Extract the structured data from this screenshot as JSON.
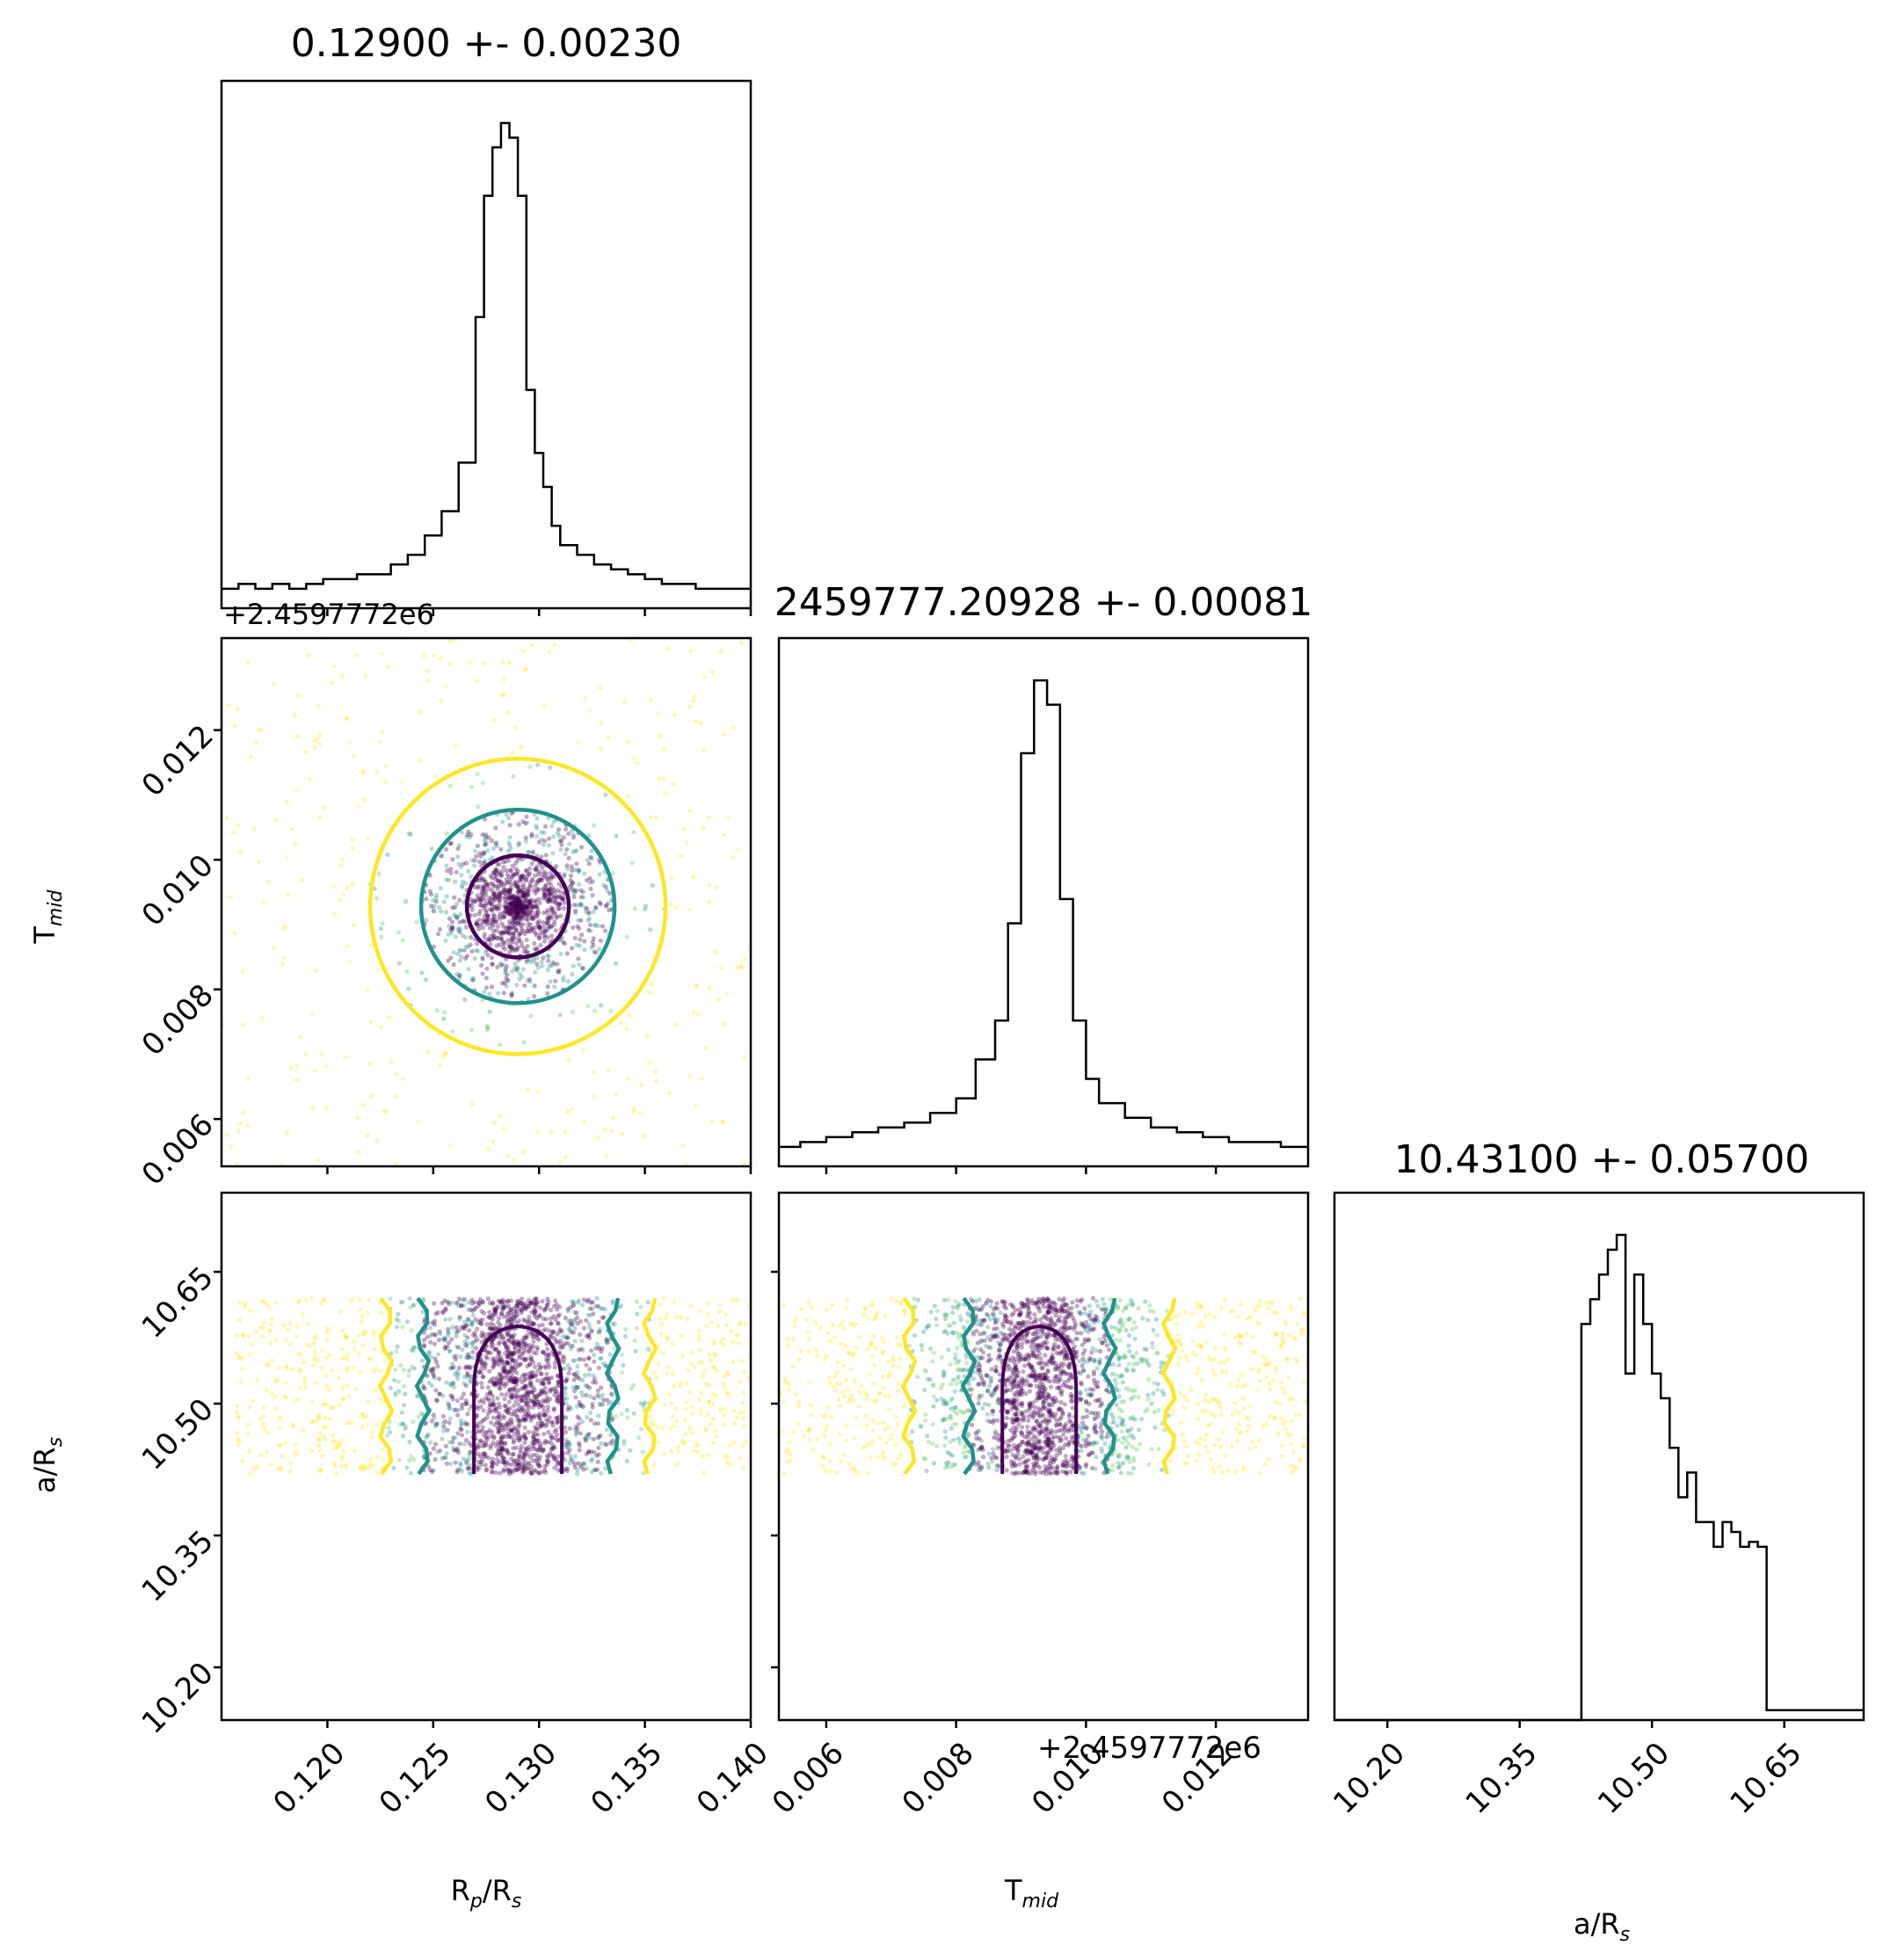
{
  "figure": {
    "offset_text_x": "+2.4597772e6",
    "offset_text_y": "+2.4597772e6",
    "colors": {
      "c1": "#440154",
      "c2": "#21918c",
      "c3": "#fde725",
      "frame": "#000000"
    }
  },
  "chart_data": [
    {
      "type": "histogram",
      "panel": "Rp/Rs marginal",
      "title": "0.12900 +- 0.00230",
      "xlim": [
        0.115,
        0.14
      ],
      "bins": [
        0.115,
        0.1158,
        0.1166,
        0.1174,
        0.1182,
        0.119,
        0.1198,
        0.1206,
        0.1214,
        0.1222,
        0.123,
        0.1238,
        0.1246,
        0.1254,
        0.1262,
        0.127,
        0.1274,
        0.1278,
        0.1282,
        0.1286,
        0.129,
        0.1294,
        0.1298,
        0.1302,
        0.1306,
        0.131,
        0.1318,
        0.1326,
        0.1334,
        0.1342,
        0.135,
        0.1358,
        0.1366,
        0.1374,
        0.1382,
        0.139,
        0.14
      ],
      "counts": [
        4,
        5,
        4,
        5,
        4,
        5,
        6,
        6,
        7,
        7,
        9,
        11,
        15,
        20,
        30,
        60,
        85,
        95,
        100,
        97,
        85,
        45,
        32,
        25,
        17,
        13,
        11,
        9,
        8,
        7,
        6,
        5,
        5,
        4,
        4,
        4
      ]
    },
    {
      "type": "scatter+contour",
      "panel": "Tmid vs Rp/Rs",
      "xlim": [
        0.115,
        0.14
      ],
      "ylim": [
        0.00527,
        0.01342
      ],
      "yticks": [
        "0.006",
        "0.008",
        "0.010",
        "0.012"
      ],
      "ylabel": "T",
      "ylabel_sub": "mid",
      "center": [
        0.129,
        0.00928
      ],
      "contours_sigma": [
        1,
        2,
        3
      ]
    },
    {
      "type": "histogram",
      "panel": "Tmid marginal",
      "title": "2459777.20928 +- 0.00081",
      "xlim": [
        0.00527,
        0.01342
      ],
      "bins": [
        0.00527,
        0.0056,
        0.006,
        0.0064,
        0.0068,
        0.0072,
        0.0076,
        0.008,
        0.0083,
        0.0086,
        0.0088,
        0.009,
        0.0092,
        0.0094,
        0.0096,
        0.0098,
        0.01,
        0.0102,
        0.0106,
        0.011,
        0.0114,
        0.0118,
        0.0122,
        0.0126,
        0.013,
        0.01342
      ],
      "counts": [
        4,
        5,
        6,
        7,
        8,
        9,
        11,
        14,
        22,
        30,
        50,
        85,
        100,
        95,
        55,
        30,
        18,
        13,
        10,
        8,
        7,
        6,
        5,
        5,
        4
      ]
    },
    {
      "type": "scatter+contour",
      "panel": "a/Rs vs Rp/Rs",
      "xlim": [
        0.115,
        0.14
      ],
      "ylim": [
        10.14,
        10.74
      ],
      "yticks": [
        "10.20",
        "10.35",
        "10.50",
        "10.65"
      ],
      "xticks": [
        "0.120",
        "0.125",
        "0.130",
        "0.135",
        "0.140"
      ],
      "ylabel": "a/R",
      "ylabel_sub": "s",
      "xlabel": "R",
      "xlabel_sub1": "p",
      "xlabel_mid": "/R",
      "xlabel_sub2": "s"
    },
    {
      "type": "scatter+contour",
      "panel": "a/Rs vs Tmid",
      "xlim": [
        0.00527,
        0.01342
      ],
      "ylim": [
        10.14,
        10.74
      ],
      "xticks": [
        "0.006",
        "0.008",
        "0.010",
        "0.012"
      ],
      "xlabel": "T",
      "xlabel_sub": "mid"
    },
    {
      "type": "histogram",
      "panel": "a/Rs marginal",
      "title": "10.43100 +- 0.05700",
      "xlim": [
        10.14,
        10.74
      ],
      "xticks": [
        "10.20",
        "10.35",
        "10.50",
        "10.65"
      ],
      "xlabel": "a/R",
      "xlabel_sub": "s",
      "bins": [
        10.14,
        10.42,
        10.43,
        10.44,
        10.45,
        10.46,
        10.47,
        10.48,
        10.49,
        10.5,
        10.51,
        10.52,
        10.53,
        10.54,
        10.55,
        10.56,
        10.57,
        10.58,
        10.59,
        10.6,
        10.61,
        10.62,
        10.63,
        10.74
      ],
      "counts": [
        0,
        80,
        85,
        90,
        95,
        98,
        70,
        90,
        80,
        70,
        65,
        55,
        45,
        50,
        40,
        40,
        35,
        40,
        38,
        35,
        36,
        35,
        2
      ]
    }
  ]
}
